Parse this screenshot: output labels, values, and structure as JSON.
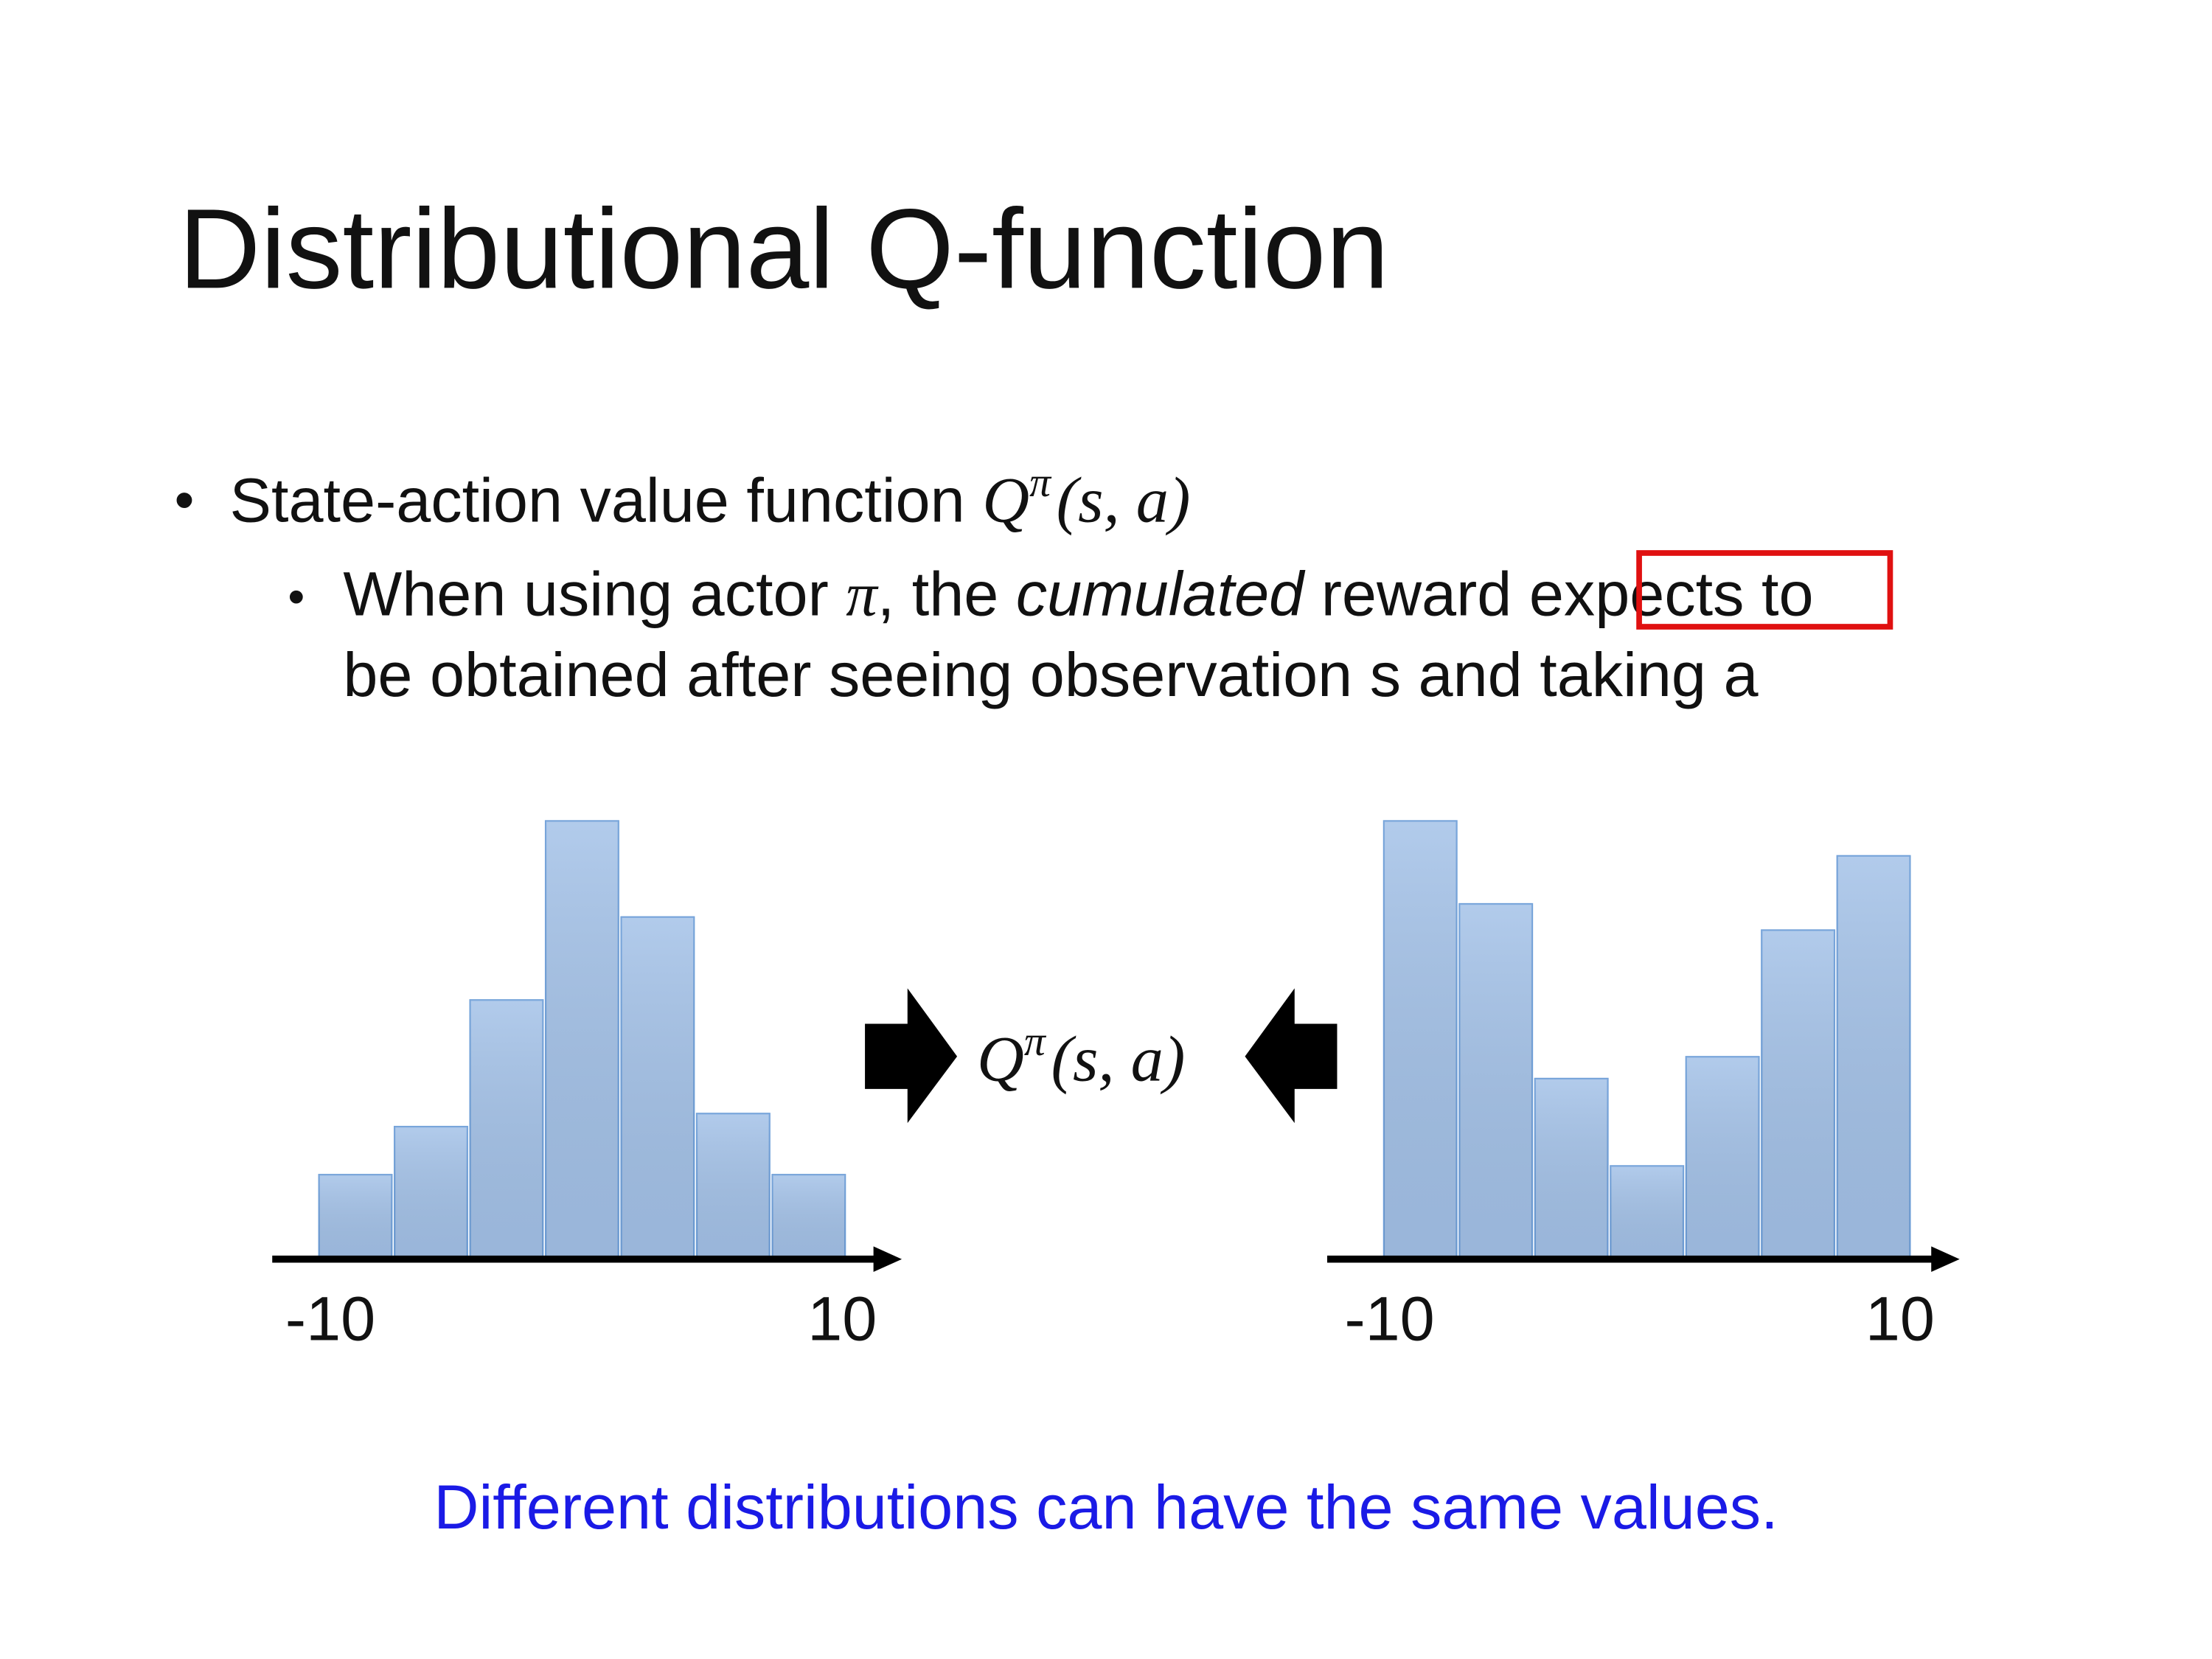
{
  "title": "Distributional Q-function",
  "bullets": [
    {
      "text": "State-action value function",
      "math": {
        "base": "Q",
        "sup": "π",
        "args": "(s, a)"
      }
    },
    {
      "parts": [
        "When using actor ",
        "π",
        ", the ",
        "cumulated",
        " reward ",
        "expects",
        " to"
      ],
      "line2": "be obtained after seeing observation s and taking a"
    }
  ],
  "center_label": {
    "base": "Q",
    "sup": "π",
    "args": "(s, a)"
  },
  "footer": "Different distributions can have the same values.",
  "chart_data": [
    {
      "type": "bar",
      "values": [
        0.19,
        0.3,
        0.59,
        1.0,
        0.78,
        0.33,
        0.19
      ],
      "color": "#a4c2e8",
      "ylim": [
        0,
        1
      ],
      "xlim": [
        -10,
        10
      ],
      "xticks": [
        -10,
        10
      ]
    },
    {
      "type": "bar",
      "values": [
        1.0,
        0.81,
        0.41,
        0.21,
        0.46,
        0.75,
        0.92
      ],
      "color": "#a4c2e8",
      "ylim": [
        0,
        1
      ],
      "xlim": [
        -10,
        10
      ],
      "xticks": [
        -10,
        10
      ]
    }
  ]
}
